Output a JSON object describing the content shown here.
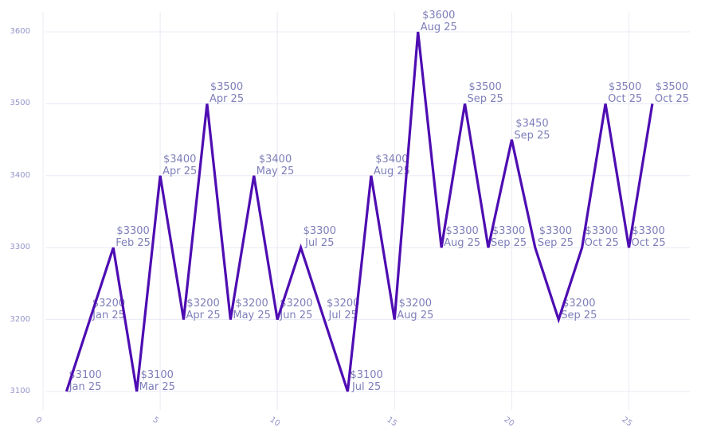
{
  "chart_data": {
    "type": "line",
    "title": "",
    "xlabel": "",
    "ylabel": "",
    "legend_position": "none",
    "grid": true,
    "x_ticks": [
      0,
      5,
      10,
      15,
      20,
      25
    ],
    "y_ticks": [
      3100,
      3200,
      3300,
      3400,
      3500,
      3600
    ],
    "xlim": [
      0,
      27.6
    ],
    "ylim": [
      3075,
      3629
    ],
    "line_color": "#4e0db2",
    "annotation_color": "#7e7eba",
    "tick_color": "#9595ca",
    "grid_color": "#eaeaf5",
    "background_color": "#ffffff",
    "points": [
      {
        "x": 1,
        "value": 3100,
        "price_label": "$3100",
        "date_label": "Jan 25"
      },
      {
        "x": 2,
        "value": 3200,
        "price_label": "$3200",
        "date_label": "Jan 25"
      },
      {
        "x": 3,
        "value": 3300,
        "price_label": "$3300",
        "date_label": "Feb 25"
      },
      {
        "x": 4,
        "value": 3100,
        "price_label": "$3100",
        "date_label": "Mar 25"
      },
      {
        "x": 5,
        "value": 3400,
        "price_label": "$3400",
        "date_label": "Apr 25"
      },
      {
        "x": 6,
        "value": 3200,
        "price_label": "$3200",
        "date_label": "Apr 25"
      },
      {
        "x": 7,
        "value": 3500,
        "price_label": "$3500",
        "date_label": "Apr 25"
      },
      {
        "x": 8,
        "value": 3200,
        "price_label": "$3200",
        "date_label": "May 25"
      },
      {
        "x": 9,
        "value": 3400,
        "price_label": "$3400",
        "date_label": "May 25"
      },
      {
        "x": 10,
        "value": 3200,
        "price_label": "$3200",
        "date_label": "Jun 25"
      },
      {
        "x": 11,
        "value": 3300,
        "price_label": "$3300",
        "date_label": "Jul 25"
      },
      {
        "x": 12,
        "value": 3200,
        "price_label": "$3200",
        "date_label": "Jul 25"
      },
      {
        "x": 13,
        "value": 3100,
        "price_label": "$3100",
        "date_label": "Jul 25"
      },
      {
        "x": 14,
        "value": 3400,
        "price_label": "$3400",
        "date_label": "Aug 25"
      },
      {
        "x": 15,
        "value": 3200,
        "price_label": "$3200",
        "date_label": "Aug 25"
      },
      {
        "x": 16,
        "value": 3600,
        "price_label": "$3600",
        "date_label": "Aug 25"
      },
      {
        "x": 17,
        "value": 3300,
        "price_label": "$3300",
        "date_label": "Aug 25"
      },
      {
        "x": 18,
        "value": 3500,
        "price_label": "$3500",
        "date_label": "Sep 25"
      },
      {
        "x": 19,
        "value": 3300,
        "price_label": "$3300",
        "date_label": "Sep 25"
      },
      {
        "x": 20,
        "value": 3450,
        "price_label": "$3450",
        "date_label": "Sep 25"
      },
      {
        "x": 21,
        "value": 3300,
        "price_label": "$3300",
        "date_label": "Sep 25"
      },
      {
        "x": 22,
        "value": 3200,
        "price_label": "$3200",
        "date_label": "Sep 25"
      },
      {
        "x": 23,
        "value": 3300,
        "price_label": "$3300",
        "date_label": "Oct 25"
      },
      {
        "x": 24,
        "value": 3500,
        "price_label": "$3500",
        "date_label": "Oct 25"
      },
      {
        "x": 25,
        "value": 3300,
        "price_label": "$3300",
        "date_label": "Oct 25"
      },
      {
        "x": 26,
        "value": 3500,
        "price_label": "$3500",
        "date_label": "Oct 25"
      }
    ]
  }
}
